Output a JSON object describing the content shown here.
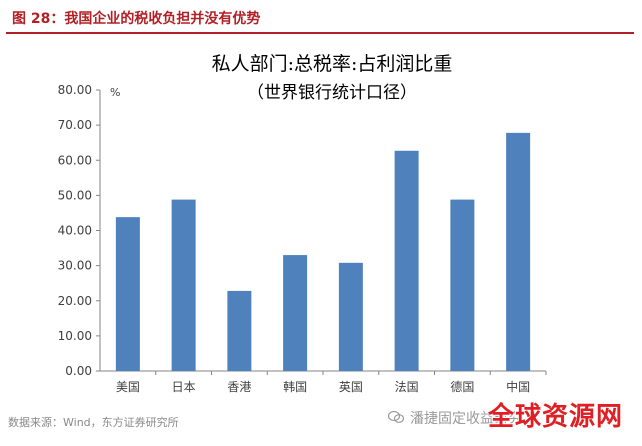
{
  "figure": {
    "label": "图 28：我国企业的税收负担并没有优势"
  },
  "chart_data": {
    "type": "bar",
    "title": "私人部门:总税率:占利润比重",
    "subtitle": "（世界银行统计口径）",
    "ylabel": "%",
    "xlabel": "",
    "ylim": [
      0,
      80
    ],
    "yticks": [
      "0.00",
      "10.00",
      "20.00",
      "30.00",
      "40.00",
      "50.00",
      "60.00",
      "70.00",
      "80.00"
    ],
    "categories": [
      "美国",
      "日本",
      "香港",
      "韩国",
      "英国",
      "法国",
      "德国",
      "中国"
    ],
    "values": [
      43.8,
      48.8,
      22.8,
      33.0,
      30.8,
      62.7,
      48.8,
      67.8
    ],
    "bar_color": "#4f81bd",
    "grid": false,
    "legend": "none"
  },
  "footer": {
    "source": "数据来源：Wind，东方证券研究所",
    "watermark_small": "潘捷固定收益研究",
    "watermark_big": "全球资源网"
  }
}
